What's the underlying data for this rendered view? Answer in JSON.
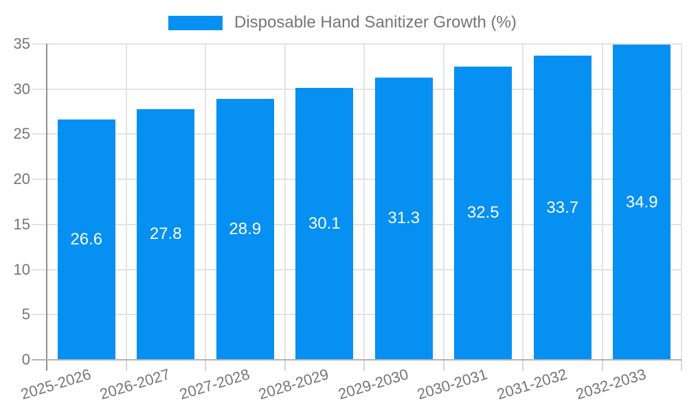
{
  "legend": {
    "label": "Disposable Hand Sanitizer Growth (%)"
  },
  "chart_data": {
    "type": "bar",
    "title": "Disposable Hand Sanitizer Growth (%)",
    "categories": [
      "2025-2026",
      "2026-2027",
      "2027-2028",
      "2028-2029",
      "2029-2030",
      "2030-2031",
      "2031-2032",
      "2032-2033"
    ],
    "values": [
      26.6,
      27.8,
      28.9,
      30.1,
      31.3,
      32.5,
      33.7,
      34.9
    ],
    "xlabel": "",
    "ylabel": "",
    "ylim": [
      0,
      35
    ],
    "yticks": [
      0,
      5,
      10,
      15,
      20,
      25,
      30,
      35
    ],
    "grid": true,
    "legend_position": "top",
    "bar_color": "#0590F2",
    "value_label_color": "#FFFFFF",
    "axis_text_color": "#757575",
    "gridline_color": "#E3E3E3",
    "y_axis_line_color": "#8F8F8F",
    "x_axis_line_color": "#B3B3B3",
    "tick_color": "#D6D6D6"
  }
}
